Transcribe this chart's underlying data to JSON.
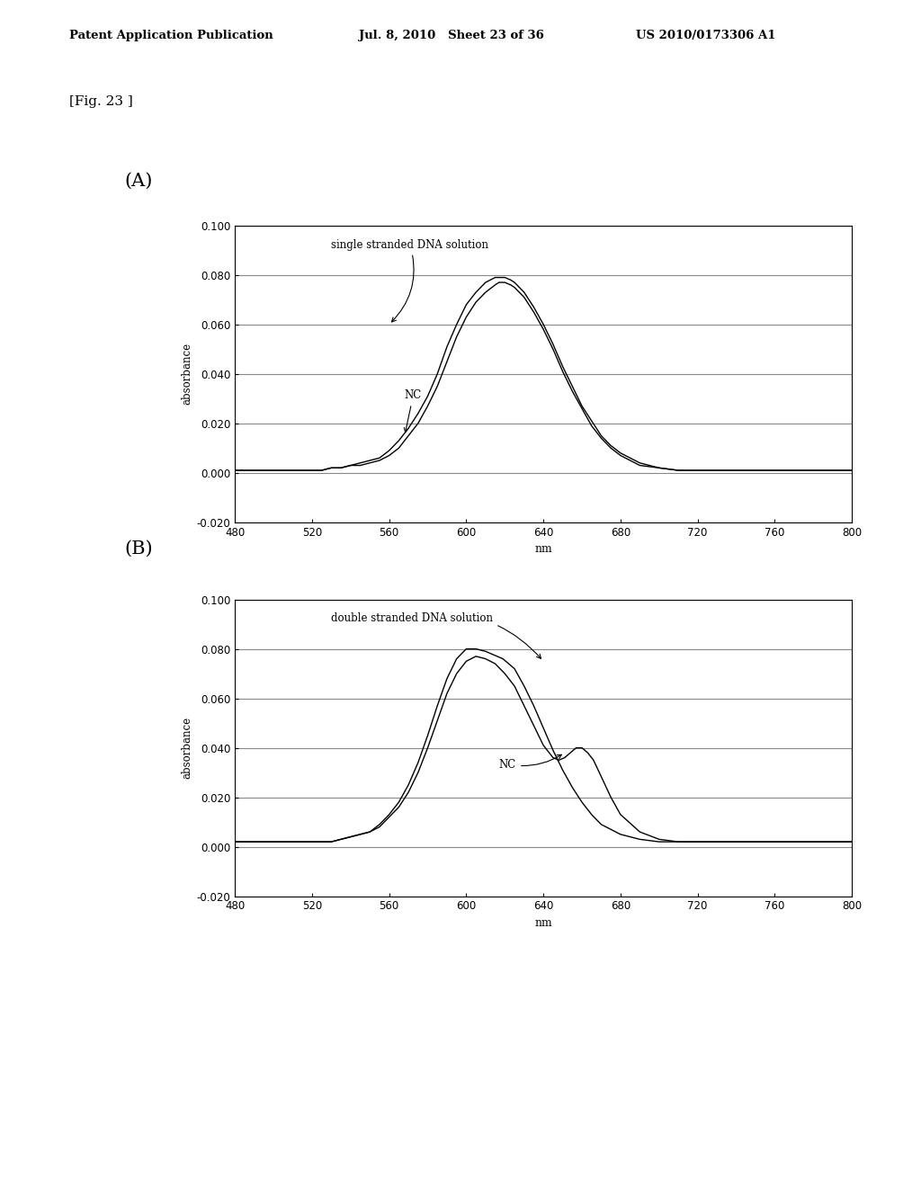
{
  "header_left": "Patent Application Publication",
  "header_mid": "Jul. 8, 2010   Sheet 23 of 36",
  "header_right": "US 2010/0173306 A1",
  "fig_label": "[Fig. 23 ]",
  "panel_A_label": "(A)",
  "panel_B_label": "(B)",
  "xlabel": "nm",
  "ylabel": "absorbance",
  "xlim": [
    480,
    800
  ],
  "ylim": [
    -0.02,
    0.1
  ],
  "xticks": [
    480,
    520,
    560,
    600,
    640,
    680,
    720,
    760,
    800
  ],
  "yticks": [
    -0.02,
    0.0,
    0.02,
    0.04,
    0.06,
    0.08,
    0.1
  ],
  "panel_A_annotation": "single stranded DNA solution",
  "panel_A_NC_label": "NC",
  "panel_B_annotation": "double stranded DNA solution",
  "panel_B_NC_label": "NC",
  "background_color": "#ffffff",
  "line_color": "#000000",
  "grid_color": "#888888",
  "A_curve1_x": [
    480,
    490,
    500,
    510,
    520,
    525,
    530,
    535,
    540,
    545,
    550,
    555,
    560,
    565,
    570,
    575,
    580,
    585,
    590,
    595,
    600,
    605,
    610,
    615,
    617,
    620,
    623,
    625,
    630,
    635,
    640,
    645,
    650,
    655,
    660,
    665,
    670,
    675,
    680,
    690,
    700,
    710,
    720,
    730,
    740,
    750,
    760,
    770,
    780,
    790,
    800
  ],
  "A_curve1_y": [
    0.001,
    0.001,
    0.001,
    0.001,
    0.001,
    0.001,
    0.002,
    0.002,
    0.003,
    0.004,
    0.005,
    0.006,
    0.009,
    0.013,
    0.018,
    0.024,
    0.031,
    0.04,
    0.051,
    0.06,
    0.068,
    0.073,
    0.077,
    0.079,
    0.079,
    0.079,
    0.078,
    0.077,
    0.073,
    0.067,
    0.06,
    0.052,
    0.043,
    0.035,
    0.027,
    0.021,
    0.015,
    0.011,
    0.008,
    0.004,
    0.002,
    0.001,
    0.001,
    0.001,
    0.001,
    0.001,
    0.001,
    0.001,
    0.001,
    0.001,
    0.001
  ],
  "A_curve2_x": [
    480,
    490,
    500,
    510,
    520,
    525,
    530,
    535,
    540,
    545,
    550,
    555,
    560,
    565,
    570,
    575,
    580,
    585,
    590,
    595,
    600,
    605,
    610,
    615,
    617,
    620,
    623,
    625,
    630,
    635,
    640,
    645,
    650,
    655,
    660,
    665,
    670,
    675,
    680,
    690,
    700,
    710,
    720,
    730,
    740,
    750,
    760,
    770,
    780,
    790,
    800
  ],
  "A_curve2_y": [
    0.001,
    0.001,
    0.001,
    0.001,
    0.001,
    0.001,
    0.002,
    0.002,
    0.003,
    0.003,
    0.004,
    0.005,
    0.007,
    0.01,
    0.015,
    0.02,
    0.027,
    0.035,
    0.045,
    0.055,
    0.063,
    0.069,
    0.073,
    0.076,
    0.077,
    0.077,
    0.076,
    0.075,
    0.071,
    0.065,
    0.058,
    0.05,
    0.041,
    0.033,
    0.026,
    0.019,
    0.014,
    0.01,
    0.007,
    0.003,
    0.002,
    0.001,
    0.001,
    0.001,
    0.001,
    0.001,
    0.001,
    0.001,
    0.001,
    0.001,
    0.001
  ],
  "B_curve1_x": [
    480,
    490,
    500,
    510,
    520,
    525,
    530,
    535,
    540,
    545,
    550,
    555,
    560,
    565,
    570,
    575,
    580,
    585,
    590,
    595,
    600,
    605,
    610,
    613,
    616,
    619,
    622,
    625,
    630,
    635,
    640,
    645,
    650,
    655,
    660,
    665,
    670,
    675,
    680,
    690,
    700,
    710,
    720,
    730,
    740,
    750,
    760,
    770,
    780,
    790,
    800
  ],
  "B_curve1_y": [
    0.002,
    0.002,
    0.002,
    0.002,
    0.002,
    0.002,
    0.002,
    0.003,
    0.004,
    0.005,
    0.006,
    0.009,
    0.013,
    0.018,
    0.025,
    0.034,
    0.045,
    0.057,
    0.068,
    0.076,
    0.08,
    0.08,
    0.079,
    0.078,
    0.077,
    0.076,
    0.074,
    0.072,
    0.065,
    0.057,
    0.048,
    0.039,
    0.031,
    0.024,
    0.018,
    0.013,
    0.009,
    0.007,
    0.005,
    0.003,
    0.002,
    0.002,
    0.002,
    0.002,
    0.002,
    0.002,
    0.002,
    0.002,
    0.002,
    0.002,
    0.002
  ],
  "B_curve2_x": [
    480,
    490,
    500,
    510,
    520,
    525,
    530,
    535,
    540,
    545,
    550,
    555,
    560,
    565,
    570,
    575,
    580,
    585,
    590,
    595,
    600,
    605,
    610,
    615,
    620,
    625,
    630,
    635,
    640,
    645,
    648,
    651,
    654,
    657,
    660,
    663,
    666,
    669,
    672,
    675,
    680,
    690,
    700,
    710,
    720,
    730,
    740,
    750,
    760,
    770,
    780,
    790,
    800
  ],
  "B_curve2_y": [
    0.002,
    0.002,
    0.002,
    0.002,
    0.002,
    0.002,
    0.002,
    0.003,
    0.004,
    0.005,
    0.006,
    0.008,
    0.012,
    0.016,
    0.022,
    0.03,
    0.04,
    0.051,
    0.062,
    0.07,
    0.075,
    0.077,
    0.076,
    0.074,
    0.07,
    0.065,
    0.057,
    0.049,
    0.041,
    0.036,
    0.035,
    0.036,
    0.038,
    0.04,
    0.04,
    0.038,
    0.035,
    0.03,
    0.025,
    0.02,
    0.013,
    0.006,
    0.003,
    0.002,
    0.002,
    0.002,
    0.002,
    0.002,
    0.002,
    0.002,
    0.002,
    0.002,
    0.002
  ]
}
